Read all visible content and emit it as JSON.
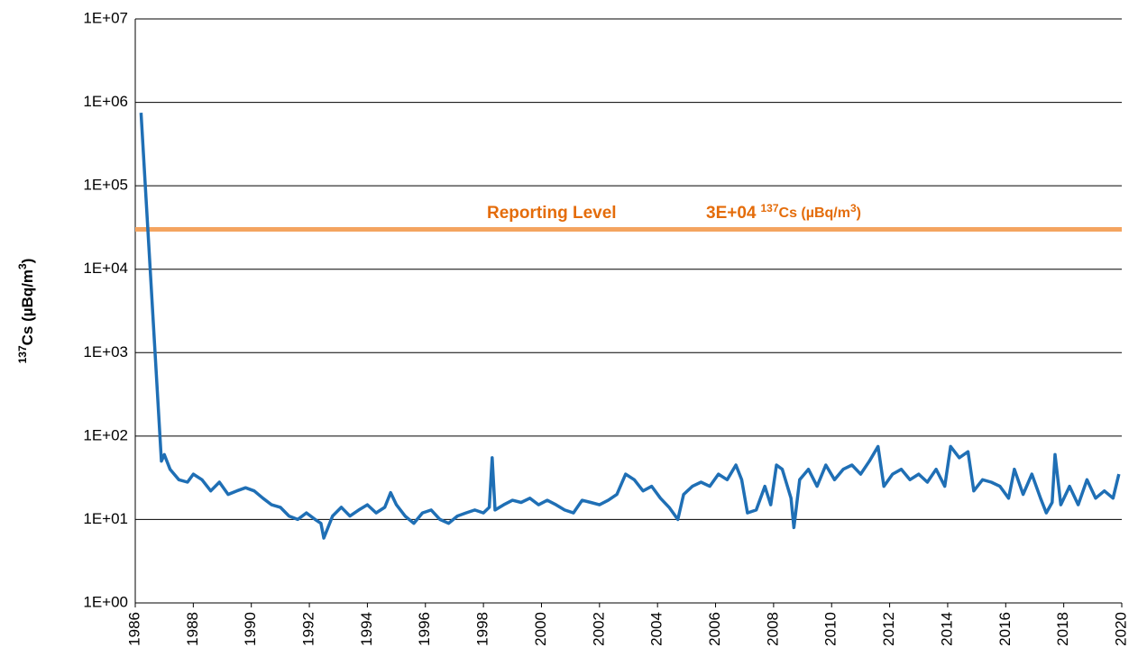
{
  "chart_data": {
    "type": "line",
    "log_y": true,
    "grid": true,
    "y_label": {
      "sup": "137",
      "main": "Cs (µBq/m",
      "sup2": "3",
      "end": ")"
    },
    "reporting_level": {
      "value": 30000,
      "label": "Reporting Level",
      "value_label": "3E+04",
      "sup": "137",
      "main": "Cs (µBq/m",
      "sup2": "3",
      "end": ")",
      "color": "#f4a460"
    },
    "xlim": [
      1986,
      2020
    ],
    "xticks": [
      1986,
      1988,
      1990,
      1992,
      1994,
      1996,
      1998,
      2000,
      2002,
      2004,
      2006,
      2008,
      2010,
      2012,
      2014,
      2016,
      2018,
      2020
    ],
    "ylim": [
      1,
      10000000
    ],
    "yticks": [
      {
        "value": 1,
        "label": "1E+00"
      },
      {
        "value": 10,
        "label": "1E+01"
      },
      {
        "value": 100,
        "label": "1E+02"
      },
      {
        "value": 1000,
        "label": "1E+03"
      },
      {
        "value": 10000,
        "label": "1E+04"
      },
      {
        "value": 100000,
        "label": "1E+05"
      },
      {
        "value": 1000000,
        "label": "1E+06"
      },
      {
        "value": 10000000,
        "label": "1E+07"
      }
    ],
    "series": [
      {
        "color": "#1f6fb5",
        "x": [
          1986.2,
          1986.9,
          1987.0,
          1987.2,
          1987.5,
          1987.8,
          1988.0,
          1988.3,
          1988.6,
          1988.9,
          1989.2,
          1989.5,
          1989.8,
          1990.1,
          1990.4,
          1990.7,
          1991.0,
          1991.3,
          1991.6,
          1991.9,
          1992.2,
          1992.4,
          1992.5,
          1992.8,
          1993.1,
          1993.4,
          1993.7,
          1994.0,
          1994.3,
          1994.6,
          1994.8,
          1995.0,
          1995.3,
          1995.6,
          1995.9,
          1996.2,
          1996.5,
          1996.8,
          1997.1,
          1997.4,
          1997.7,
          1998.0,
          1998.2,
          1998.3,
          1998.4,
          1998.7,
          1999.0,
          1999.3,
          1999.6,
          1999.9,
          2000.2,
          2000.5,
          2000.8,
          2001.1,
          2001.4,
          2001.7,
          2002.0,
          2002.3,
          2002.6,
          2002.9,
          2003.2,
          2003.5,
          2003.8,
          2004.1,
          2004.4,
          2004.7,
          2004.9,
          2005.2,
          2005.5,
          2005.8,
          2006.1,
          2006.4,
          2006.7,
          2006.9,
          2007.1,
          2007.4,
          2007.7,
          2007.9,
          2008.1,
          2008.3,
          2008.6,
          2008.7,
          2008.9,
          2009.2,
          2009.5,
          2009.8,
          2010.1,
          2010.4,
          2010.7,
          2011.0,
          2011.3,
          2011.6,
          2011.8,
          2012.1,
          2012.4,
          2012.7,
          2013.0,
          2013.3,
          2013.6,
          2013.9,
          2014.1,
          2014.4,
          2014.7,
          2014.9,
          2015.2,
          2015.5,
          2015.8,
          2016.1,
          2016.3,
          2016.6,
          2016.9,
          2017.2,
          2017.4,
          2017.6,
          2017.7,
          2017.9,
          2018.2,
          2018.5,
          2018.8,
          2019.1,
          2019.4,
          2019.7,
          2019.9
        ],
        "values": [
          750000,
          50,
          60,
          40,
          30,
          28,
          35,
          30,
          22,
          28,
          20,
          22,
          24,
          22,
          18,
          15,
          14,
          11,
          10,
          12,
          10,
          9,
          6,
          11,
          14,
          11,
          13,
          15,
          12,
          14,
          21,
          15,
          11,
          9,
          12,
          13,
          10,
          9,
          11,
          12,
          13,
          12,
          14,
          55,
          13,
          15,
          17,
          16,
          18,
          15,
          17,
          15,
          13,
          12,
          17,
          16,
          15,
          17,
          20,
          35,
          30,
          22,
          25,
          18,
          14,
          10,
          20,
          25,
          28,
          25,
          35,
          30,
          45,
          30,
          12,
          13,
          25,
          15,
          45,
          40,
          18,
          8,
          30,
          40,
          25,
          45,
          30,
          40,
          45,
          35,
          50,
          75,
          25,
          35,
          40,
          30,
          35,
          28,
          40,
          25,
          75,
          55,
          65,
          22,
          30,
          28,
          25,
          18,
          40,
          20,
          35,
          18,
          12,
          16,
          60,
          15,
          25,
          15,
          30,
          18,
          22,
          18,
          35
        ]
      }
    ]
  }
}
